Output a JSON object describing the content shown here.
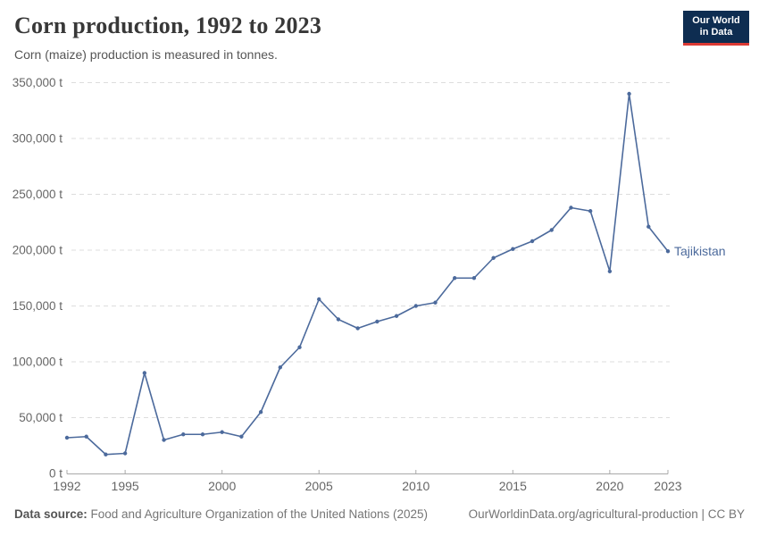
{
  "header": {
    "title": "Corn production, 1992 to 2023",
    "subtitle": "Corn (maize) production is measured in tonnes."
  },
  "logo": {
    "line1": "Our World",
    "line2": "in Data"
  },
  "chart_data": {
    "type": "line",
    "title": "Corn production, 1992 to 2023",
    "unit": "tonnes",
    "x": [
      1992,
      1993,
      1994,
      1995,
      1996,
      1997,
      1998,
      1999,
      2000,
      2001,
      2002,
      2003,
      2004,
      2005,
      2006,
      2007,
      2008,
      2009,
      2010,
      2011,
      2012,
      2013,
      2014,
      2015,
      2016,
      2017,
      2018,
      2019,
      2020,
      2021,
      2022,
      2023
    ],
    "series": [
      {
        "name": "Tajikistan",
        "color": "#4C6A9C",
        "values": [
          32000,
          33000,
          17000,
          18000,
          90000,
          30000,
          35000,
          35000,
          37000,
          33000,
          55000,
          95000,
          113000,
          156000,
          138000,
          130000,
          136000,
          141000,
          150000,
          153000,
          175000,
          175000,
          193000,
          201000,
          208000,
          218000,
          238000,
          235000,
          181000,
          340000,
          221000,
          199000
        ]
      }
    ],
    "ylim": [
      0,
      350000
    ],
    "yticks": [
      0,
      50000,
      100000,
      150000,
      200000,
      250000,
      300000,
      350000
    ],
    "ytick_suffix": " t",
    "xticks": [
      1992,
      1995,
      2000,
      2005,
      2010,
      2015,
      2020,
      2023
    ],
    "grid": "horizontal-dashed",
    "legend_position": "end-of-line-label"
  },
  "colors": {
    "line": "#4C6A9C",
    "grid": "#dddddd",
    "axis": "#a9a9a9",
    "tick_label": "#666666",
    "logo_bg": "#0e2d51",
    "logo_accent": "#dc3a34"
  },
  "footer": {
    "source_label": "Data source:",
    "source_text": " Food and Agriculture Organization of the United Nations (2025)",
    "link_text": "OurWorldinData.org/agricultural-production | CC BY"
  }
}
